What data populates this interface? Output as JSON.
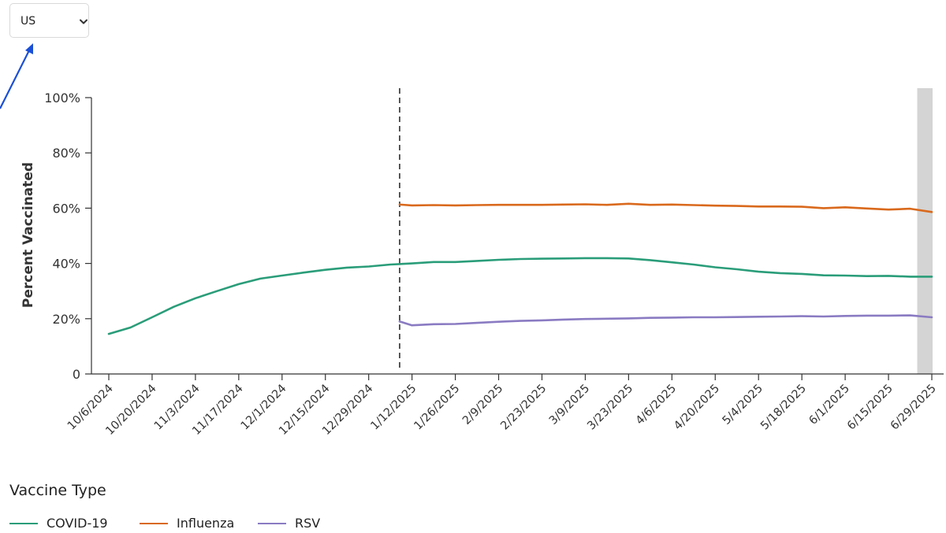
{
  "region_select": {
    "value": "US",
    "chevron_icon": "chevron-down-icon"
  },
  "legend": {
    "title": "Vaccine Type"
  },
  "chart_data": {
    "type": "line",
    "ylabel": "Percent Vaccinated",
    "xlabel": "",
    "title": "",
    "ylim": [
      0,
      100
    ],
    "y_ticks": [
      0,
      20,
      40,
      60,
      80,
      100
    ],
    "y_tick_labels": [
      "0",
      "20%",
      "40%",
      "60%",
      "80%",
      "100%"
    ],
    "x_tick_labels": [
      "10/6/2024",
      "10/20/2024",
      "11/3/2024",
      "11/17/2024",
      "12/1/2024",
      "12/15/2024",
      "12/29/2024",
      "1/12/2025",
      "1/26/2025",
      "2/9/2025",
      "2/23/2025",
      "3/9/2025",
      "3/23/2025",
      "4/6/2025",
      "4/20/2025",
      "5/4/2025",
      "5/18/2025",
      "6/1/2025",
      "6/15/2025",
      "6/29/2025"
    ],
    "x_range": [
      "10/6/2024",
      "6/29/2025"
    ],
    "reference_line_date": "1/8/2025",
    "shaded_range": [
      "6/22/2025",
      "6/29/2025"
    ],
    "grid": false,
    "legend_position": "bottom-left",
    "series": [
      {
        "name": "COVID-19",
        "color": "#2a9d79",
        "x": [
          "10/6/2024",
          "10/13/2024",
          "10/20/2024",
          "10/27/2024",
          "11/3/2024",
          "11/10/2024",
          "11/17/2024",
          "11/24/2024",
          "12/1/2024",
          "12/8/2024",
          "12/15/2024",
          "12/22/2024",
          "12/29/2024",
          "1/5/2025",
          "1/12/2025",
          "1/19/2025",
          "1/26/2025",
          "2/2/2025",
          "2/9/2025",
          "2/16/2025",
          "2/23/2025",
          "3/2/2025",
          "3/9/2025",
          "3/16/2025",
          "3/23/2025",
          "3/30/2025",
          "4/6/2025",
          "4/13/2025",
          "4/20/2025",
          "4/27/2025",
          "5/4/2025",
          "5/11/2025",
          "5/18/2025",
          "5/25/2025",
          "6/1/2025",
          "6/8/2025",
          "6/15/2025",
          "6/22/2025",
          "6/29/2025"
        ],
        "values": [
          14.5,
          16.8,
          20.5,
          24.3,
          27.4,
          30.0,
          32.5,
          34.5,
          35.6,
          36.7,
          37.7,
          38.5,
          38.9,
          39.6,
          40.0,
          40.5,
          40.5,
          40.9,
          41.3,
          41.6,
          41.7,
          41.8,
          41.9,
          41.9,
          41.8,
          41.2,
          40.4,
          39.6,
          38.6,
          37.9,
          37.0,
          36.5,
          36.2,
          35.7,
          35.6,
          35.4,
          35.5,
          35.2,
          35.2
        ]
      },
      {
        "name": "Influenza",
        "color": "#d9691c",
        "x": [
          "1/8/2025",
          "1/12/2025",
          "1/19/2025",
          "1/26/2025",
          "2/2/2025",
          "2/9/2025",
          "2/16/2025",
          "2/23/2025",
          "3/2/2025",
          "3/9/2025",
          "3/16/2025",
          "3/23/2025",
          "3/30/2025",
          "4/6/2025",
          "4/13/2025",
          "4/20/2025",
          "4/27/2025",
          "5/4/2025",
          "5/11/2025",
          "5/18/2025",
          "5/25/2025",
          "6/1/2025",
          "6/8/2025",
          "6/15/2025",
          "6/22/2025",
          "6/29/2025"
        ],
        "values": [
          61.3,
          61.0,
          61.1,
          61.0,
          61.1,
          61.2,
          61.2,
          61.2,
          61.3,
          61.4,
          61.2,
          61.6,
          61.2,
          61.3,
          61.1,
          60.9,
          60.8,
          60.6,
          60.6,
          60.5,
          60.0,
          60.3,
          59.9,
          59.5,
          59.8,
          58.6
        ]
      },
      {
        "name": "RSV",
        "color": "#8a7bc2",
        "x": [
          "1/8/2025",
          "1/12/2025",
          "1/19/2025",
          "1/26/2025",
          "2/2/2025",
          "2/9/2025",
          "2/16/2025",
          "2/23/2025",
          "3/2/2025",
          "3/9/2025",
          "3/16/2025",
          "3/23/2025",
          "3/30/2025",
          "4/6/2025",
          "4/13/2025",
          "4/20/2025",
          "4/27/2025",
          "5/4/2025",
          "5/11/2025",
          "5/18/2025",
          "5/25/2025",
          "6/1/2025",
          "6/8/2025",
          "6/15/2025",
          "6/22/2025",
          "6/29/2025"
        ],
        "values": [
          19.0,
          17.6,
          18.0,
          18.1,
          18.5,
          18.9,
          19.2,
          19.4,
          19.7,
          19.9,
          20.0,
          20.1,
          20.3,
          20.4,
          20.5,
          20.5,
          20.6,
          20.7,
          20.8,
          20.9,
          20.8,
          21.0,
          21.1,
          21.1,
          21.2,
          20.5
        ]
      }
    ]
  }
}
